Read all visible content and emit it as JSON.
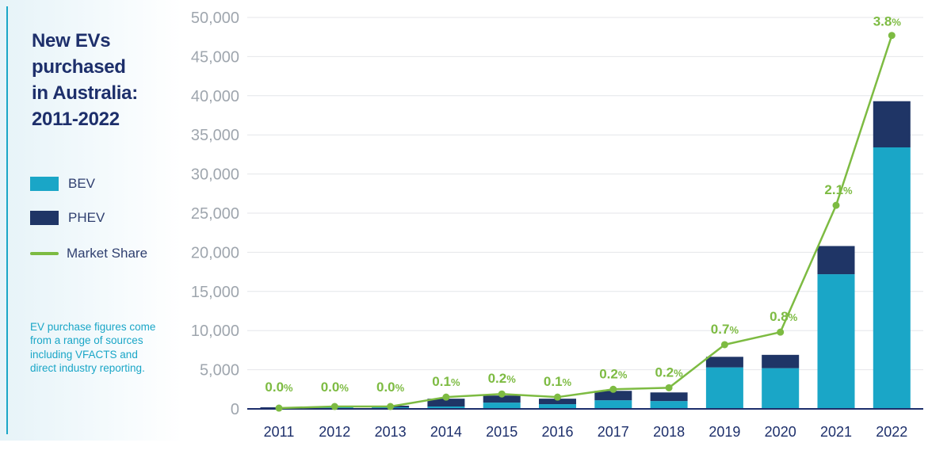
{
  "title": "New EVs\npurchased\nin Australia:\n2011-2022",
  "legend": [
    {
      "label": "BEV",
      "color": "#1aa6c7",
      "kind": "box"
    },
    {
      "label": "PHEV",
      "color": "#1f3566",
      "kind": "box"
    },
    {
      "label": "Market Share",
      "color": "#7dbb42",
      "kind": "line"
    }
  ],
  "footnote": "EV purchase figures come from a range of sources including VFACTS and direct industry reporting.",
  "chart_data": {
    "type": "bar",
    "stacked": true,
    "categories": [
      "2011",
      "2012",
      "2013",
      "2014",
      "2015",
      "2016",
      "2017",
      "2018",
      "2019",
      "2020",
      "2021",
      "2022"
    ],
    "series": [
      {
        "name": "BEV",
        "color": "#1aa6c7",
        "values": [
          50,
          250,
          200,
          300,
          800,
          600,
          1100,
          1000,
          5300,
          5200,
          17200,
          33400
        ]
      },
      {
        "name": "PHEV",
        "color": "#1f3566",
        "values": [
          150,
          100,
          200,
          1000,
          900,
          700,
          1200,
          1100,
          1350,
          1700,
          3600,
          5900
        ]
      }
    ],
    "line_series": {
      "name": "Market Share",
      "color": "#7dbb42",
      "labels": [
        "0.0%",
        "0.0%",
        "0.0%",
        "0.1%",
        "0.2%",
        "0.1%",
        "0.2%",
        "0.2%",
        "0.7%",
        "0.8%",
        "2.1%",
        "3.8%"
      ],
      "plotted_values": [
        100,
        300,
        300,
        1500,
        1900,
        1500,
        2500,
        2700,
        8200,
        9800,
        26000,
        47700
      ]
    },
    "y_ticks": [
      "0",
      "5,000",
      "10,000",
      "15,000",
      "20,000",
      "25,000",
      "30,000",
      "35,000",
      "40,000",
      "45,000",
      "50,000"
    ],
    "ylim": [
      0,
      50000
    ],
    "grid": true
  }
}
